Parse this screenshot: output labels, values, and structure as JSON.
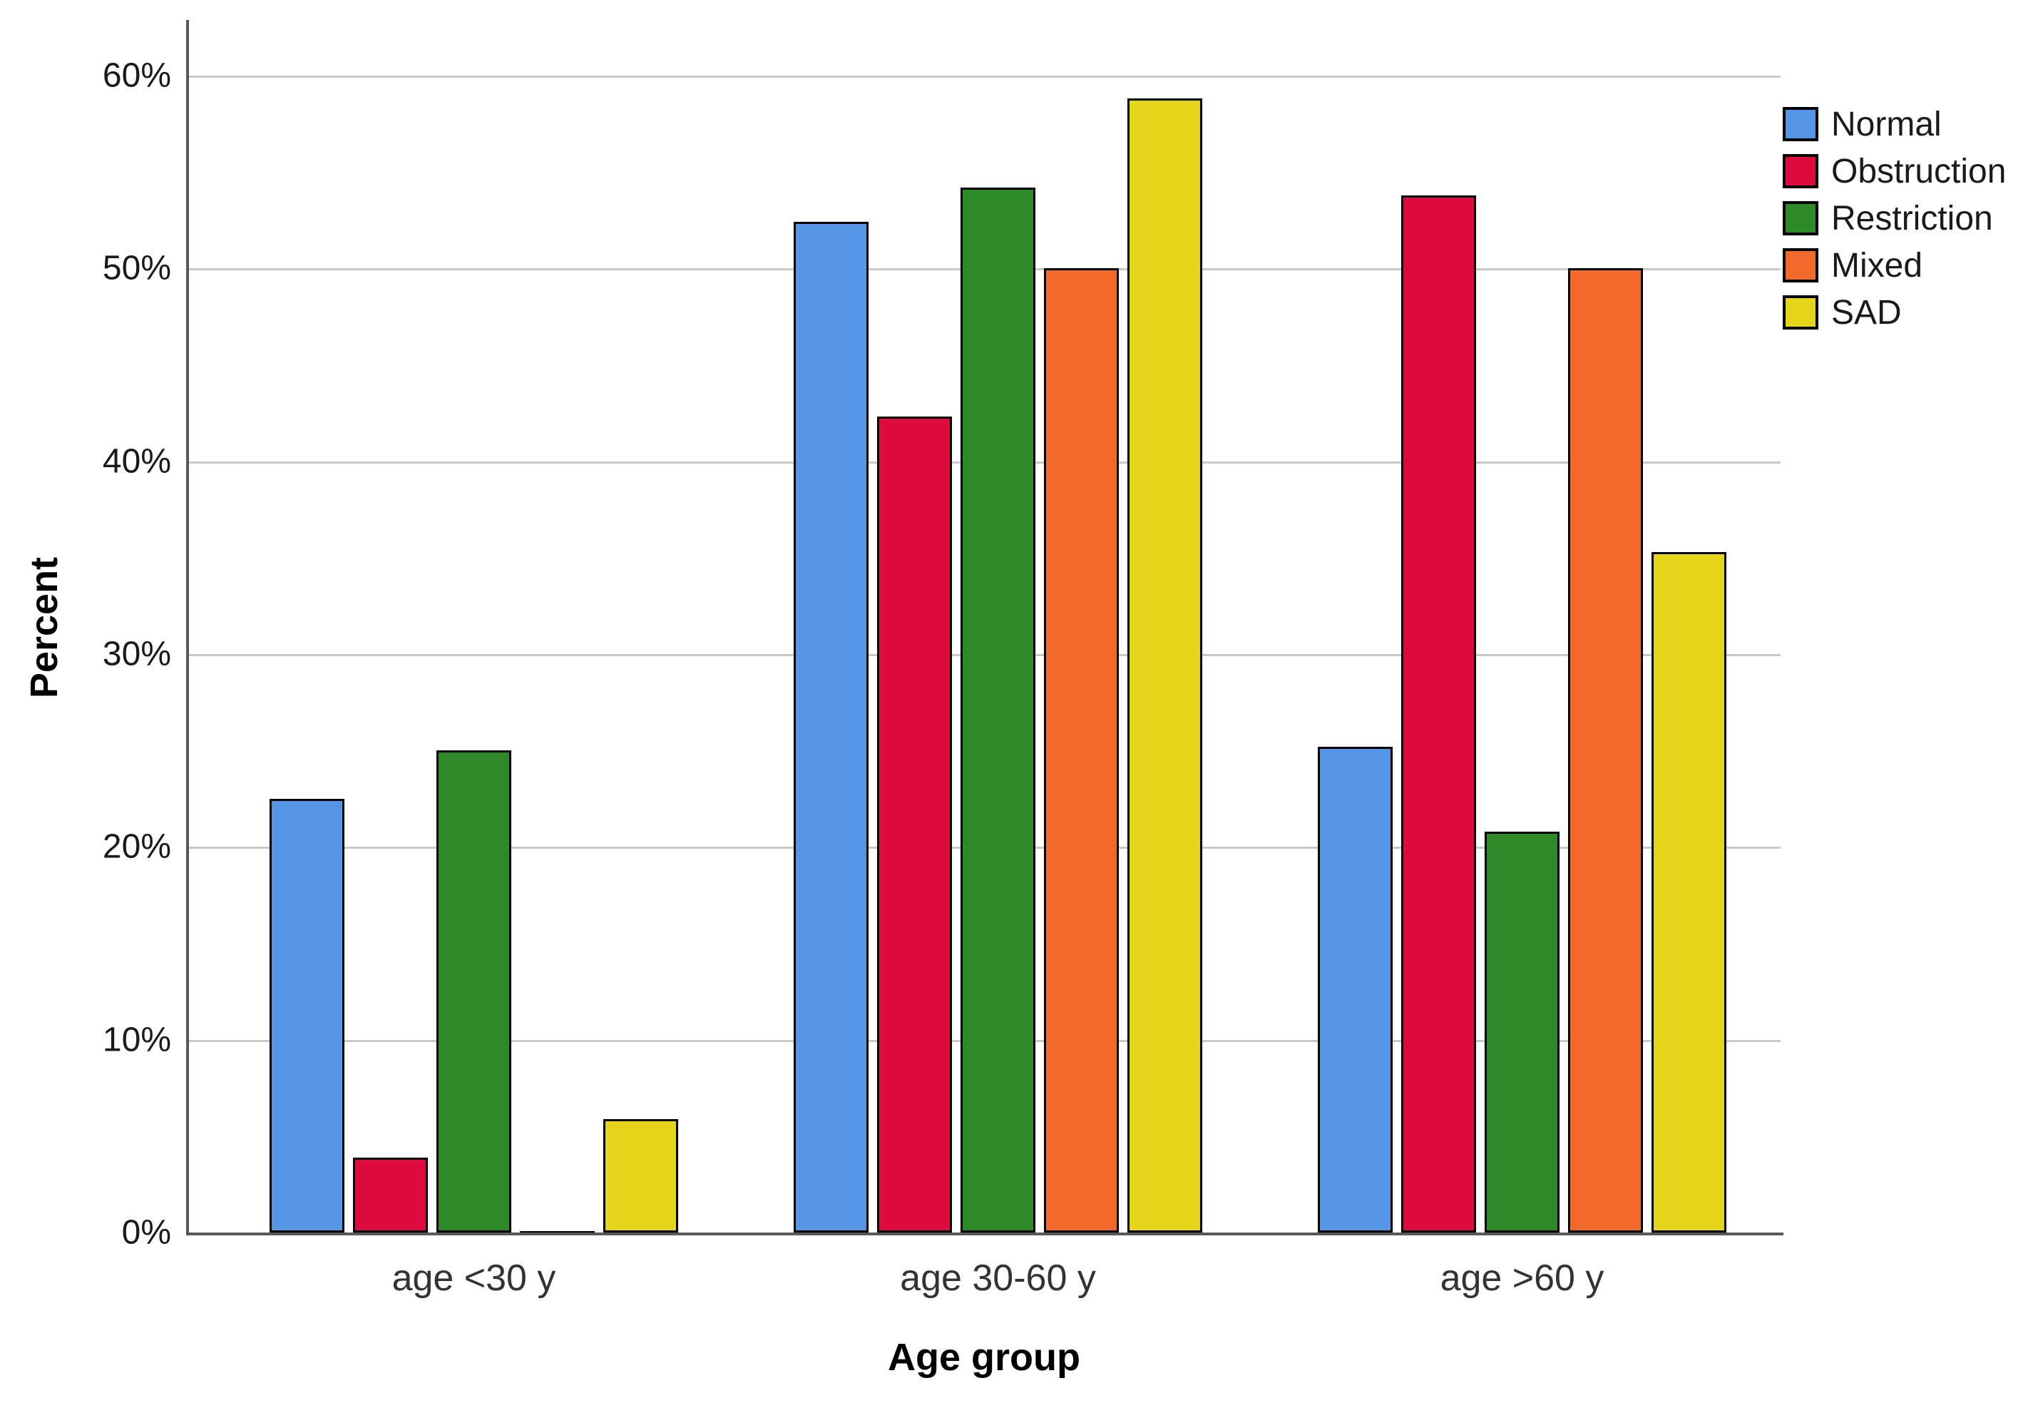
{
  "chart_data": {
    "type": "bar",
    "title": "",
    "xlabel": "Age group",
    "ylabel": "Percent",
    "categories": [
      "age <30 y",
      "age 30-60 y",
      "age >60 y"
    ],
    "series": [
      {
        "name": "Normal",
        "color": "#5495E5",
        "values": [
          22.5,
          52.4,
          25.2
        ]
      },
      {
        "name": "Obstruction",
        "color": "#DE0B3F",
        "values": [
          3.9,
          42.3,
          53.8
        ]
      },
      {
        "name": "Restriction",
        "color": "#2E8A26",
        "values": [
          25.0,
          54.2,
          20.8
        ]
      },
      {
        "name": "Mixed",
        "color": "#F2692A",
        "values": [
          0.0,
          50.0,
          50.0
        ]
      },
      {
        "name": "SAD",
        "color": "#E5D61C",
        "values": [
          5.9,
          58.8,
          35.3
        ]
      }
    ],
    "yticks": [
      {
        "value": 0,
        "label": "0%"
      },
      {
        "value": 10,
        "label": "10%"
      },
      {
        "value": 20,
        "label": "20%"
      },
      {
        "value": 30,
        "label": "30%"
      },
      {
        "value": 40,
        "label": "40%"
      },
      {
        "value": 50,
        "label": "50%"
      },
      {
        "value": 60,
        "label": "60%"
      }
    ],
    "ylim": [
      0,
      62.8
    ],
    "grid": "horizontal",
    "legend_position": "top-right-outside"
  },
  "colors": {
    "axis": "#58585a",
    "gridline": "#c9c9c9",
    "bar_outline": "#000000",
    "tick_text": "#1a1a1a",
    "category_text": "#333333",
    "background": "#ffffff"
  }
}
